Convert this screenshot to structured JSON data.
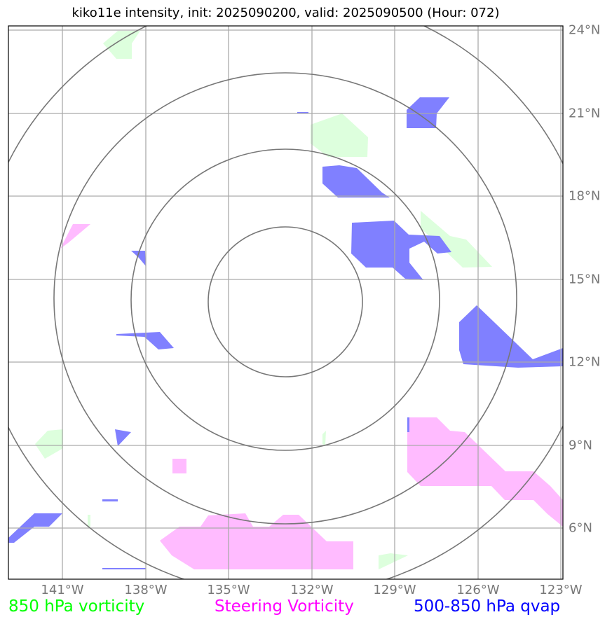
{
  "title": "kiko11e intensity, init: 2025090200, valid: 2025090500 (Hour: 072)",
  "lon_labels": [
    "141°W",
    "138°W",
    "135°W",
    "132°W",
    "129°W",
    "126°W",
    "123°W"
  ],
  "lat_labels": [
    "24°N",
    "21°N",
    "18°N",
    "15°N",
    "12°N",
    "9°N",
    "6°N"
  ],
  "legend": {
    "vort850": {
      "label": "850 hPa vorticity",
      "color": "#00ff00"
    },
    "steering": {
      "label": "Steering Vorticity",
      "color": "#ff00ff"
    },
    "qvap": {
      "label": "500-850 hPa qvap",
      "color": "#0000ff"
    }
  },
  "fill_colors": {
    "vort850": "#ddffdd",
    "steering": "#ffbbff",
    "qvap": "#8080ff"
  },
  "grid_color": "#aaaaaa",
  "ring_color": "#777777"
}
